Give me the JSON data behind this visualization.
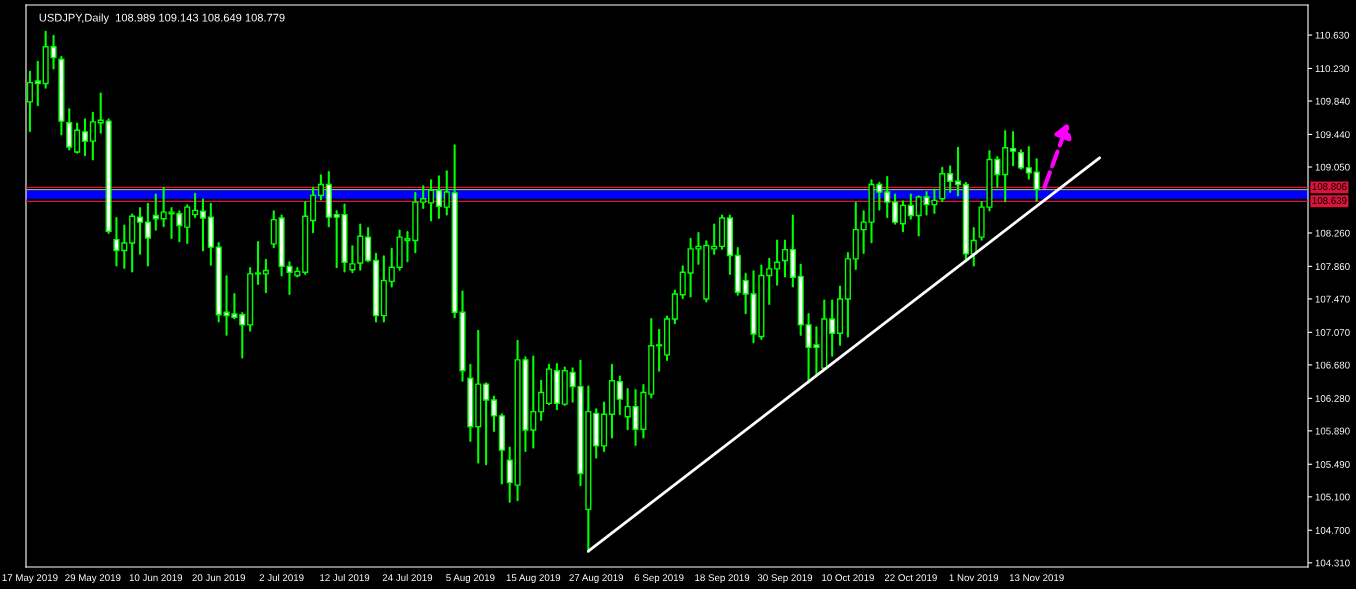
{
  "chart_data": {
    "type": "candlestick",
    "title": "USDJPY,Daily  108.989 109.143 108.649 108.779",
    "categories": [
      "17 May 2019",
      null,
      null,
      null,
      null,
      null,
      null,
      null,
      "29 May 2019",
      null,
      null,
      null,
      null,
      null,
      null,
      null,
      "10 Jun 2019",
      null,
      null,
      null,
      null,
      null,
      null,
      null,
      "20 Jun 2019",
      null,
      null,
      null,
      null,
      null,
      null,
      null,
      "2 Jul 2019",
      null,
      null,
      null,
      null,
      null,
      null,
      null,
      "12 Jul 2019",
      null,
      null,
      null,
      null,
      null,
      null,
      null,
      "24 Jul 2019",
      null,
      null,
      null,
      null,
      null,
      null,
      null,
      "5 Aug 2019",
      null,
      null,
      null,
      null,
      null,
      null,
      null,
      "15 Aug 2019",
      null,
      null,
      null,
      null,
      null,
      null,
      null,
      "27 Aug 2019",
      null,
      null,
      null,
      null,
      null,
      null,
      null,
      "6 Sep 2019",
      null,
      null,
      null,
      null,
      null,
      null,
      null,
      "18 Sep 2019",
      null,
      null,
      null,
      null,
      null,
      null,
      null,
      "30 Sep 2019",
      null,
      null,
      null,
      null,
      null,
      null,
      null,
      "10 Oct 2019",
      null,
      null,
      null,
      null,
      null,
      null,
      null,
      "22 Oct 2019",
      null,
      null,
      null,
      null,
      null,
      null,
      null,
      "1 Nov 2019",
      null,
      null,
      null,
      null,
      null,
      null,
      null,
      "13 Nov 2019",
      null,
      null,
      null,
      null,
      null,
      null,
      null,
      null,
      null,
      null,
      null,
      null,
      null,
      null,
      null,
      null,
      null,
      null,
      null,
      null,
      null,
      null,
      null,
      null,
      null,
      null,
      null,
      null,
      null,
      null,
      null,
      null,
      null,
      null
    ],
    "series": [
      {
        "color": "#00ff00",
        "ohlc": [
          [
            109.83,
            110.19,
            109.48,
            110.06
          ],
          [
            110.08,
            110.31,
            109.79,
            110.05
          ],
          [
            110.05,
            110.67,
            110.0,
            110.49
          ],
          [
            110.49,
            110.62,
            110.23,
            110.36
          ],
          [
            110.34,
            110.37,
            109.44,
            109.6
          ],
          [
            109.58,
            109.74,
            109.26,
            109.29
          ],
          [
            109.23,
            109.57,
            109.22,
            109.49
          ],
          [
            109.47,
            109.62,
            109.19,
            109.36
          ],
          [
            109.36,
            109.7,
            109.14,
            109.59
          ],
          [
            109.58,
            109.93,
            109.46,
            109.61
          ],
          [
            109.6,
            109.62,
            108.26,
            108.28
          ],
          [
            108.18,
            108.44,
            107.87,
            108.05
          ],
          [
            108.05,
            108.35,
            107.84,
            108.14
          ],
          [
            108.14,
            108.48,
            107.8,
            108.46
          ],
          [
            108.45,
            108.56,
            108.01,
            108.39
          ],
          [
            108.39,
            108.61,
            107.87,
            108.2
          ],
          [
            108.47,
            108.72,
            108.3,
            108.43
          ],
          [
            108.43,
            108.8,
            108.34,
            108.51
          ],
          [
            108.49,
            108.56,
            108.2,
            108.51
          ],
          [
            108.49,
            108.52,
            108.16,
            108.35
          ],
          [
            108.33,
            108.59,
            108.14,
            108.57
          ],
          [
            108.48,
            108.73,
            108.45,
            108.53
          ],
          [
            108.52,
            108.66,
            108.05,
            108.44
          ],
          [
            108.45,
            108.61,
            107.88,
            108.09
          ],
          [
            108.09,
            108.14,
            107.2,
            107.28
          ],
          [
            107.31,
            107.74,
            107.04,
            107.27
          ],
          [
            107.29,
            107.53,
            107.24,
            107.25
          ],
          [
            107.28,
            107.3,
            106.77,
            107.16
          ],
          [
            107.16,
            107.84,
            107.09,
            107.77
          ],
          [
            107.77,
            108.15,
            107.65,
            107.78
          ],
          [
            107.77,
            107.94,
            107.55,
            107.81
          ],
          [
            108.13,
            108.52,
            108.09,
            108.42
          ],
          [
            108.44,
            108.47,
            107.75,
            107.86
          ],
          [
            107.86,
            107.91,
            107.53,
            107.79
          ],
          [
            107.75,
            107.84,
            107.74,
            107.8
          ],
          [
            107.79,
            108.63,
            107.77,
            108.46
          ],
          [
            108.41,
            108.8,
            108.27,
            108.71
          ],
          [
            108.71,
            108.95,
            108.66,
            108.84
          ],
          [
            108.84,
            108.99,
            108.34,
            108.45
          ],
          [
            108.48,
            108.52,
            107.85,
            108.45
          ],
          [
            108.48,
            108.6,
            107.8,
            107.91
          ],
          [
            107.82,
            108.1,
            107.79,
            107.89
          ],
          [
            107.9,
            108.36,
            107.82,
            108.22
          ],
          [
            108.21,
            108.32,
            107.92,
            107.93
          ],
          [
            107.93,
            108.01,
            107.2,
            107.27
          ],
          [
            107.27,
            107.98,
            107.2,
            107.69
          ],
          [
            107.68,
            108.07,
            107.62,
            107.85
          ],
          [
            107.85,
            108.29,
            107.82,
            108.21
          ],
          [
            108.17,
            108.27,
            107.92,
            108.19
          ],
          [
            108.17,
            108.74,
            108.03,
            108.63
          ],
          [
            108.63,
            108.82,
            108.56,
            108.67
          ],
          [
            108.62,
            108.89,
            108.41,
            108.77
          ],
          [
            108.77,
            108.94,
            108.44,
            108.58
          ],
          [
            108.57,
            109.0,
            108.48,
            108.75
          ],
          [
            108.74,
            109.31,
            107.25,
            107.31
          ],
          [
            107.31,
            107.56,
            106.49,
            106.61
          ],
          [
            106.52,
            106.68,
            105.77,
            105.94
          ],
          [
            105.94,
            107.09,
            105.51,
            106.45
          ],
          [
            106.45,
            106.46,
            105.49,
            106.26
          ],
          [
            106.26,
            106.3,
            105.89,
            106.07
          ],
          [
            106.07,
            106.09,
            105.26,
            105.66
          ],
          [
            105.54,
            105.69,
            105.04,
            105.27
          ],
          [
            105.24,
            106.97,
            105.06,
            106.74
          ],
          [
            106.74,
            106.77,
            105.65,
            105.9
          ],
          [
            105.9,
            106.78,
            105.69,
            106.12
          ],
          [
            106.12,
            106.49,
            106.02,
            106.35
          ],
          [
            106.22,
            106.68,
            106.21,
            106.63
          ],
          [
            106.61,
            106.69,
            106.15,
            106.22
          ],
          [
            106.21,
            106.65,
            106.2,
            106.61
          ],
          [
            106.59,
            106.64,
            106.24,
            106.42
          ],
          [
            106.42,
            106.73,
            105.24,
            105.38
          ],
          [
            104.95,
            106.42,
            104.44,
            106.12
          ],
          [
            106.1,
            106.15,
            105.57,
            105.71
          ],
          [
            105.71,
            106.23,
            105.65,
            106.09
          ],
          [
            106.09,
            106.68,
            105.81,
            106.49
          ],
          [
            106.48,
            106.54,
            106.09,
            106.27
          ],
          [
            106.06,
            106.39,
            105.91,
            106.18
          ],
          [
            106.18,
            106.38,
            105.72,
            105.91
          ],
          [
            105.91,
            106.44,
            105.81,
            106.35
          ],
          [
            106.33,
            107.23,
            106.29,
            106.91
          ],
          [
            106.91,
            107.1,
            106.61,
            106.92
          ],
          [
            106.8,
            107.26,
            106.74,
            107.23
          ],
          [
            107.23,
            107.57,
            107.18,
            107.53
          ],
          [
            107.52,
            107.86,
            107.48,
            107.79
          ],
          [
            107.78,
            108.19,
            107.5,
            108.07
          ],
          [
            108.07,
            108.26,
            107.89,
            108.1
          ],
          [
            107.47,
            108.16,
            107.44,
            108.11
          ],
          [
            108.07,
            108.36,
            108.01,
            108.1
          ],
          [
            108.1,
            108.47,
            108.07,
            108.44
          ],
          [
            108.44,
            108.47,
            107.77,
            107.99
          ],
          [
            107.99,
            108.08,
            107.52,
            107.55
          ],
          [
            107.69,
            107.77,
            107.3,
            107.53
          ],
          [
            107.53,
            107.8,
            106.95,
            107.05
          ],
          [
            107.02,
            107.87,
            106.99,
            107.75
          ],
          [
            107.75,
            107.95,
            107.41,
            107.83
          ],
          [
            107.83,
            108.17,
            107.64,
            107.91
          ],
          [
            107.93,
            108.17,
            107.74,
            108.06
          ],
          [
            108.06,
            108.47,
            107.62,
            107.73
          ],
          [
            107.74,
            107.88,
            107.04,
            107.16
          ],
          [
            107.16,
            107.29,
            106.47,
            106.89
          ],
          [
            106.92,
            107.13,
            106.56,
            106.89
          ],
          [
            106.64,
            107.45,
            106.63,
            107.23
          ],
          [
            107.23,
            107.45,
            106.79,
            107.06
          ],
          [
            107.06,
            107.62,
            106.92,
            107.47
          ],
          [
            107.47,
            108.02,
            107.02,
            107.95
          ],
          [
            107.95,
            108.62,
            107.83,
            108.3
          ],
          [
            108.3,
            108.52,
            108.02,
            108.39
          ],
          [
            108.39,
            108.89,
            108.15,
            108.84
          ],
          [
            108.84,
            108.86,
            108.54,
            108.75
          ],
          [
            108.75,
            108.93,
            108.45,
            108.63
          ],
          [
            108.63,
            108.72,
            108.37,
            108.39
          ],
          [
            108.37,
            108.64,
            108.28,
            108.59
          ],
          [
            108.59,
            108.72,
            108.43,
            108.47
          ],
          [
            108.47,
            108.7,
            108.23,
            108.69
          ],
          [
            108.69,
            108.75,
            108.48,
            108.6
          ],
          [
            108.6,
            108.78,
            108.5,
            108.65
          ],
          [
            108.67,
            109.04,
            108.64,
            108.97
          ],
          [
            108.97,
            109.06,
            108.75,
            108.88
          ],
          [
            108.88,
            109.28,
            108.71,
            108.84
          ],
          [
            108.84,
            108.86,
            107.92,
            108.01
          ],
          [
            108.01,
            108.32,
            107.87,
            108.17
          ],
          [
            108.21,
            108.63,
            108.18,
            108.57
          ],
          [
            108.57,
            109.24,
            108.53,
            109.14
          ],
          [
            109.14,
            109.17,
            108.81,
            108.96
          ],
          [
            108.96,
            109.48,
            108.64,
            109.28
          ],
          [
            109.27,
            109.47,
            109.07,
            109.24
          ],
          [
            109.22,
            109.25,
            109.03,
            109.04
          ],
          [
            109.04,
            109.29,
            108.91,
            108.98
          ],
          [
            108.989,
            109.143,
            108.649,
            108.779
          ],
          null,
          null,
          null,
          null,
          null,
          null,
          null,
          null,
          null,
          null,
          null,
          null,
          null,
          null,
          null,
          null,
          null,
          null,
          null,
          null,
          null,
          null,
          null,
          null,
          null,
          null,
          null,
          null,
          null,
          null,
          null,
          null,
          null,
          null
        ]
      },
      {
        "type": "line",
        "color": "#ffffff",
        "line_style": "solid",
        "values": [
          null,
          null,
          null,
          null,
          null,
          null,
          null,
          null,
          null,
          null,
          null,
          null,
          null,
          null,
          null,
          null,
          null,
          null,
          null,
          null,
          null,
          null,
          null,
          null,
          null,
          null,
          null,
          null,
          null,
          null,
          null,
          null,
          null,
          null,
          null,
          null,
          null,
          null,
          null,
          null,
          null,
          null,
          null,
          null,
          null,
          null,
          null,
          null,
          null,
          null,
          null,
          null,
          null,
          null,
          null,
          null,
          null,
          null,
          null,
          null,
          null,
          null,
          null,
          null,
          null,
          null,
          null,
          null,
          null,
          null,
          null,
          104.45,
          null,
          null,
          null,
          null,
          null,
          null,
          null,
          null,
          null,
          null,
          null,
          null,
          null,
          null,
          null,
          null,
          null,
          null,
          null,
          null,
          null,
          null,
          null,
          null,
          null,
          null,
          null,
          null,
          null,
          null,
          null,
          null,
          null,
          null,
          null,
          null,
          null,
          null,
          null,
          null,
          null,
          null,
          null,
          null,
          null,
          null,
          null,
          null,
          null,
          null,
          null,
          null,
          null,
          null,
          null,
          null,
          null,
          null,
          null,
          null,
          null,
          null,
          null,
          null,
          109.16,
          null,
          null,
          null,
          null,
          null,
          null,
          null,
          null,
          null,
          null,
          null,
          null,
          null,
          null,
          null,
          null,
          null,
          null,
          null,
          null,
          null,
          null,
          null,
          null,
          null,
          null
        ]
      }
    ],
    "ylim": [
      104.26,
      110.99
    ],
    "yticks": [
      {
        "value": 110.63,
        "label": "110.630"
      },
      {
        "value": 110.23,
        "label": "110.230"
      },
      {
        "value": 109.84,
        "label": "109.840"
      },
      {
        "value": 109.44,
        "label": "109.440"
      },
      {
        "value": 109.05,
        "label": "109.050"
      },
      {
        "value": 108.26,
        "label": "108.260"
      },
      {
        "value": 107.86,
        "label": "107.860"
      },
      {
        "value": 107.47,
        "label": "107.470"
      },
      {
        "value": 107.07,
        "label": "107.070"
      },
      {
        "value": 106.68,
        "label": "106.680"
      },
      {
        "value": 106.28,
        "label": "106.280"
      },
      {
        "value": 105.89,
        "label": "105.890"
      },
      {
        "value": 105.49,
        "label": "105.490"
      },
      {
        "value": 105.1,
        "label": "105.100"
      },
      {
        "value": 104.7,
        "label": "104.700"
      },
      {
        "value": 104.31,
        "label": "104.310"
      }
    ],
    "ref_lines": [
      {
        "axis": "y",
        "value": 108.806,
        "label": "108.806",
        "color": "#dc143c"
      },
      {
        "axis": "y",
        "value": 108.639,
        "label": "108.639",
        "color": "#dc143c"
      },
      {
        "axis": "y",
        "value": 108.779,
        "color": "#a0a0a0"
      }
    ],
    "bands": [
      {
        "axis": "y",
        "from": 108.67,
        "to": 108.77,
        "color": "#0000ff"
      }
    ],
    "grid": false,
    "legend": false
  }
}
